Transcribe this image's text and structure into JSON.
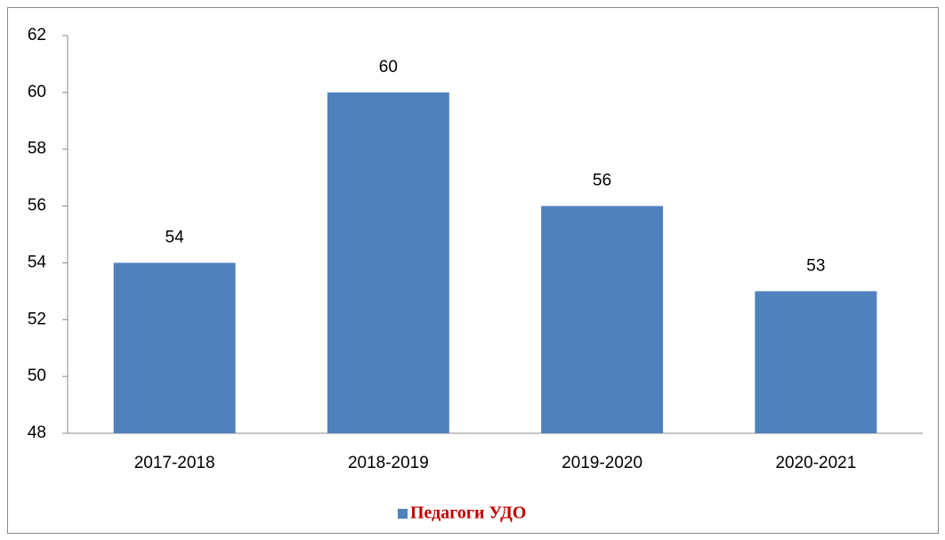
{
  "chart_data": {
    "type": "bar",
    "categories": [
      "2017-2018",
      "2018-2019",
      "2019-2020",
      "2020-2021"
    ],
    "series": [
      {
        "name": "Педагоги УДО",
        "color": "#4f81bd",
        "values": [
          54,
          60,
          56,
          53
        ]
      }
    ],
    "ylim": [
      48,
      62
    ],
    "yticks": [
      48,
      50,
      52,
      54,
      56,
      58,
      60,
      62
    ],
    "grid": false,
    "legend": "bottom",
    "legend_text_color": "#c00000"
  }
}
